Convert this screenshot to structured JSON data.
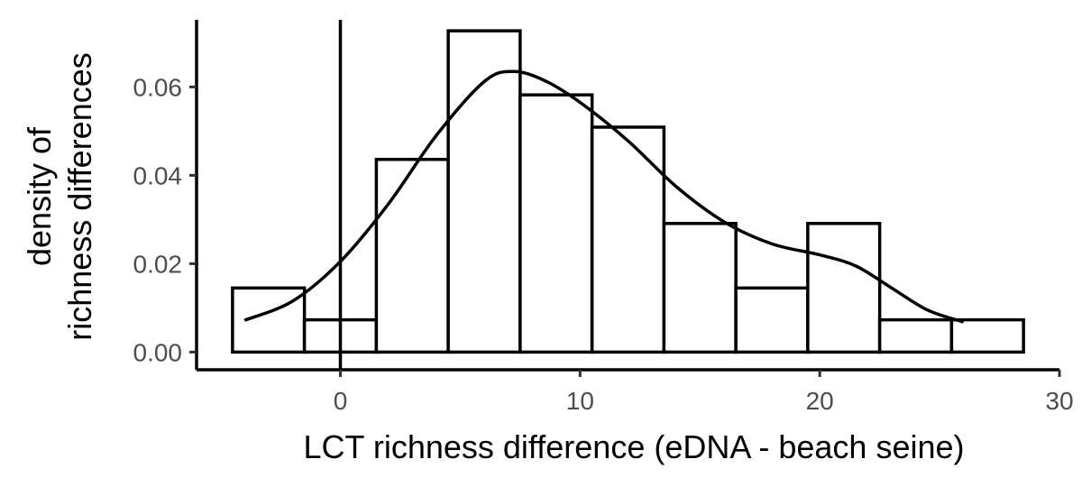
{
  "chart_data": {
    "type": "bar",
    "xlabel": "LCT richness difference (eDNA - beach seine)",
    "ylabel_lines": [
      "density of",
      "richness differences"
    ],
    "xlim": [
      -6,
      30
    ],
    "ylim": [
      -0.004,
      0.076
    ],
    "x_ticks": [
      0,
      10,
      20,
      30
    ],
    "y_ticks": [
      0.0,
      0.02,
      0.04,
      0.06
    ],
    "x_tick_labels": [
      "0",
      "10",
      "20",
      "30"
    ],
    "y_tick_labels": [
      "0.00",
      "0.02",
      "0.04",
      "0.06"
    ],
    "bin_width": 3,
    "bins": [
      {
        "start": -4.5,
        "end": -1.5,
        "density": 0.0145
      },
      {
        "start": -1.5,
        "end": 1.5,
        "density": 0.0073
      },
      {
        "start": 1.5,
        "end": 4.5,
        "density": 0.0436
      },
      {
        "start": 4.5,
        "end": 7.5,
        "density": 0.0727
      },
      {
        "start": 7.5,
        "end": 10.5,
        "density": 0.0582
      },
      {
        "start": 10.5,
        "end": 13.5,
        "density": 0.0509
      },
      {
        "start": 13.5,
        "end": 16.5,
        "density": 0.0291
      },
      {
        "start": 16.5,
        "end": 19.5,
        "density": 0.0145
      },
      {
        "start": 19.5,
        "end": 22.5,
        "density": 0.0291
      },
      {
        "start": 22.5,
        "end": 25.5,
        "density": 0.0073
      },
      {
        "start": 25.5,
        "end": 28.5,
        "density": 0.0073
      }
    ],
    "density_curve": [
      {
        "x": -4.0,
        "y": 0.0072
      },
      {
        "x": -2.0,
        "y": 0.0115
      },
      {
        "x": 0.0,
        "y": 0.0205
      },
      {
        "x": 2.0,
        "y": 0.0335
      },
      {
        "x": 4.0,
        "y": 0.049
      },
      {
        "x": 6.0,
        "y": 0.0612
      },
      {
        "x": 7.2,
        "y": 0.0635
      },
      {
        "x": 8.5,
        "y": 0.0615
      },
      {
        "x": 10.0,
        "y": 0.0565
      },
      {
        "x": 12.0,
        "y": 0.0478
      },
      {
        "x": 14.0,
        "y": 0.0375
      },
      {
        "x": 16.0,
        "y": 0.0295
      },
      {
        "x": 18.0,
        "y": 0.0245
      },
      {
        "x": 20.0,
        "y": 0.022
      },
      {
        "x": 21.5,
        "y": 0.0195
      },
      {
        "x": 23.0,
        "y": 0.0145
      },
      {
        "x": 24.5,
        "y": 0.0095
      },
      {
        "x": 26.0,
        "y": 0.0068
      }
    ],
    "vline_x": 0
  }
}
